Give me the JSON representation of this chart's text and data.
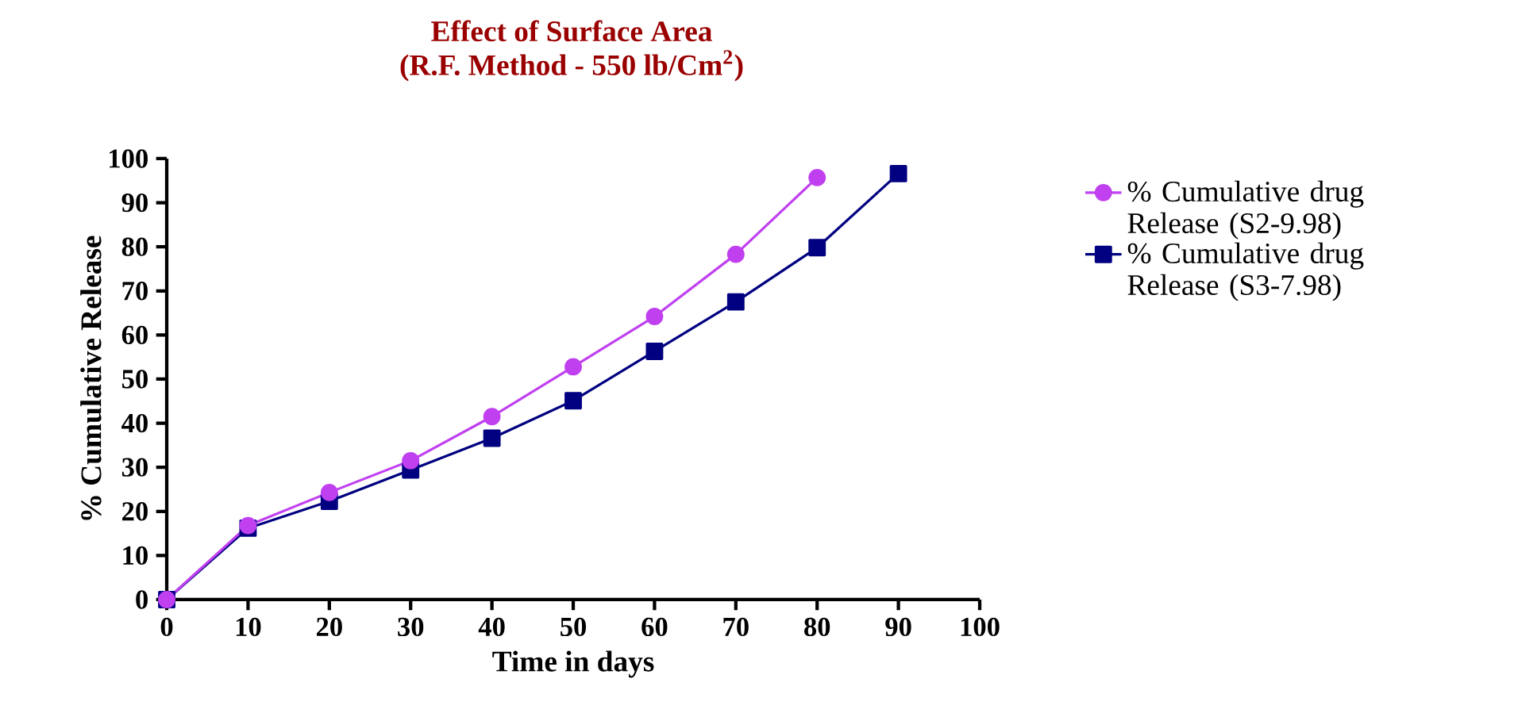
{
  "chart_data": {
    "type": "line",
    "title": "Effect of Surface Area",
    "subtitle": "(R.F. Method - 550 lb/Cm$^{2}$)",
    "xlabel": "Time in days",
    "ylabel": "% Cumulative Release",
    "xlim": [
      0,
      100
    ],
    "xticks": [
      0,
      10,
      20,
      30,
      40,
      50,
      60,
      70,
      80,
      90,
      100
    ],
    "ylim": [
      0,
      100
    ],
    "yticks": [
      0,
      10,
      20,
      30,
      40,
      50,
      60,
      70,
      80,
      90,
      100
    ],
    "grid": false,
    "legend": "top right",
    "line_style": "solid",
    "series": [
      {
        "name": "% Cumulative drug Release (S2-9.98)",
        "color": "#c040f0",
        "marker": "circle",
        "x": [
          0,
          10,
          20,
          30,
          40,
          50,
          60,
          70,
          80
        ],
        "values": [
          0,
          16.8,
          24.3,
          31.5,
          41.5,
          52.8,
          64.2,
          78.3,
          95.7
        ]
      },
      {
        "name": "% Cumulative drug Release (S3-7.98)",
        "color": "#000080",
        "marker": "square",
        "x": [
          0,
          10,
          20,
          30,
          40,
          50,
          60,
          70,
          80,
          90
        ],
        "values": [
          0,
          16.2,
          22.3,
          29.4,
          36.6,
          45.1,
          56.3,
          67.5,
          79.8,
          96.6
        ]
      }
    ]
  }
}
